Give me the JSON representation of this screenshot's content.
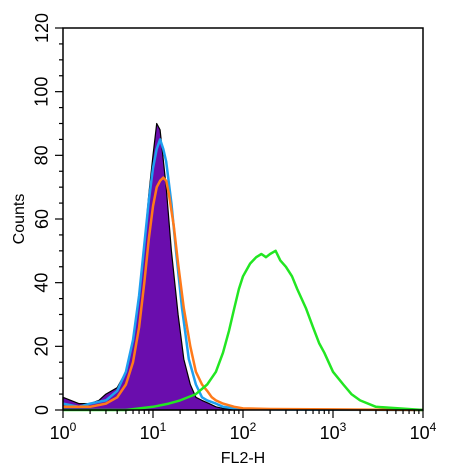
{
  "chart_data": {
    "type": "area",
    "xscale": "log",
    "xlim": [
      1,
      10000
    ],
    "ylim": [
      0,
      120
    ],
    "xlabel": "FL2-H",
    "ylabel": "Counts",
    "x_ticks": [
      {
        "value": 1,
        "base": "10",
        "exp": "0"
      },
      {
        "value": 10,
        "base": "10",
        "exp": "1"
      },
      {
        "value": 100,
        "base": "10",
        "exp": "2"
      },
      {
        "value": 1000,
        "base": "10",
        "exp": "3"
      },
      {
        "value": 10000,
        "base": "10",
        "exp": "4"
      }
    ],
    "y_ticks": [
      "0",
      "20",
      "40",
      "60",
      "80",
      "100",
      "120"
    ],
    "grid": false,
    "series": [
      {
        "color": "#6a0dad",
        "filled": true,
        "x": [
          1,
          1.5,
          2,
          2.5,
          3,
          4,
          5,
          6,
          7,
          8,
          9,
          10,
          11,
          12,
          14,
          16,
          19,
          22,
          26,
          30,
          35,
          42,
          50,
          60,
          80,
          100
        ],
        "y": [
          4,
          2,
          2,
          3,
          5,
          7,
          12,
          22,
          35,
          52,
          68,
          80,
          90,
          88,
          70,
          50,
          30,
          16,
          8,
          4,
          3,
          2,
          1,
          0.5,
          0.3,
          0
        ]
      },
      {
        "color": "#1ea0f0",
        "filled": false,
        "x": [
          1,
          1.5,
          2,
          3,
          4,
          5,
          6,
          7,
          8,
          9,
          10,
          11,
          12,
          13,
          14,
          16,
          18,
          21,
          25,
          30,
          35,
          40,
          50,
          60,
          80,
          100,
          200,
          1000,
          10000
        ],
        "y": [
          2,
          1,
          2,
          3,
          6,
          12,
          22,
          36,
          52,
          66,
          76,
          82,
          85,
          82,
          78,
          65,
          50,
          32,
          16,
          8,
          4,
          3,
          2,
          1,
          0.5,
          0.3,
          0.2,
          0.1,
          0
        ]
      },
      {
        "color": "#ff7a1a",
        "filled": false,
        "x": [
          1,
          2,
          3,
          4,
          5,
          6,
          7,
          8,
          9,
          10,
          11,
          12,
          13,
          14,
          15,
          17,
          19,
          22,
          26,
          30,
          35,
          40,
          45,
          50,
          60,
          80,
          100,
          200,
          1000,
          10000
        ],
        "y": [
          1,
          1,
          2,
          4,
          8,
          15,
          26,
          40,
          54,
          64,
          70,
          72,
          73,
          72,
          68,
          58,
          46,
          32,
          20,
          12,
          8,
          6,
          4,
          3,
          2,
          1,
          0.5,
          0.3,
          0.2,
          0
        ]
      },
      {
        "color": "#22e622",
        "filled": false,
        "x": [
          1,
          5,
          10,
          15,
          20,
          30,
          40,
          50,
          60,
          70,
          80,
          90,
          100,
          120,
          140,
          160,
          180,
          200,
          230,
          260,
          300,
          350,
          400,
          500,
          600,
          700,
          800,
          1000,
          1300,
          1600,
          2000,
          3000,
          10000
        ],
        "y": [
          0,
          0,
          1,
          2,
          3,
          5,
          8,
          12,
          18,
          25,
          32,
          38,
          42,
          46,
          48,
          49,
          48,
          49,
          50,
          47,
          45,
          42,
          38,
          32,
          26,
          21,
          18,
          12,
          8,
          5,
          3,
          1,
          0
        ]
      }
    ]
  }
}
